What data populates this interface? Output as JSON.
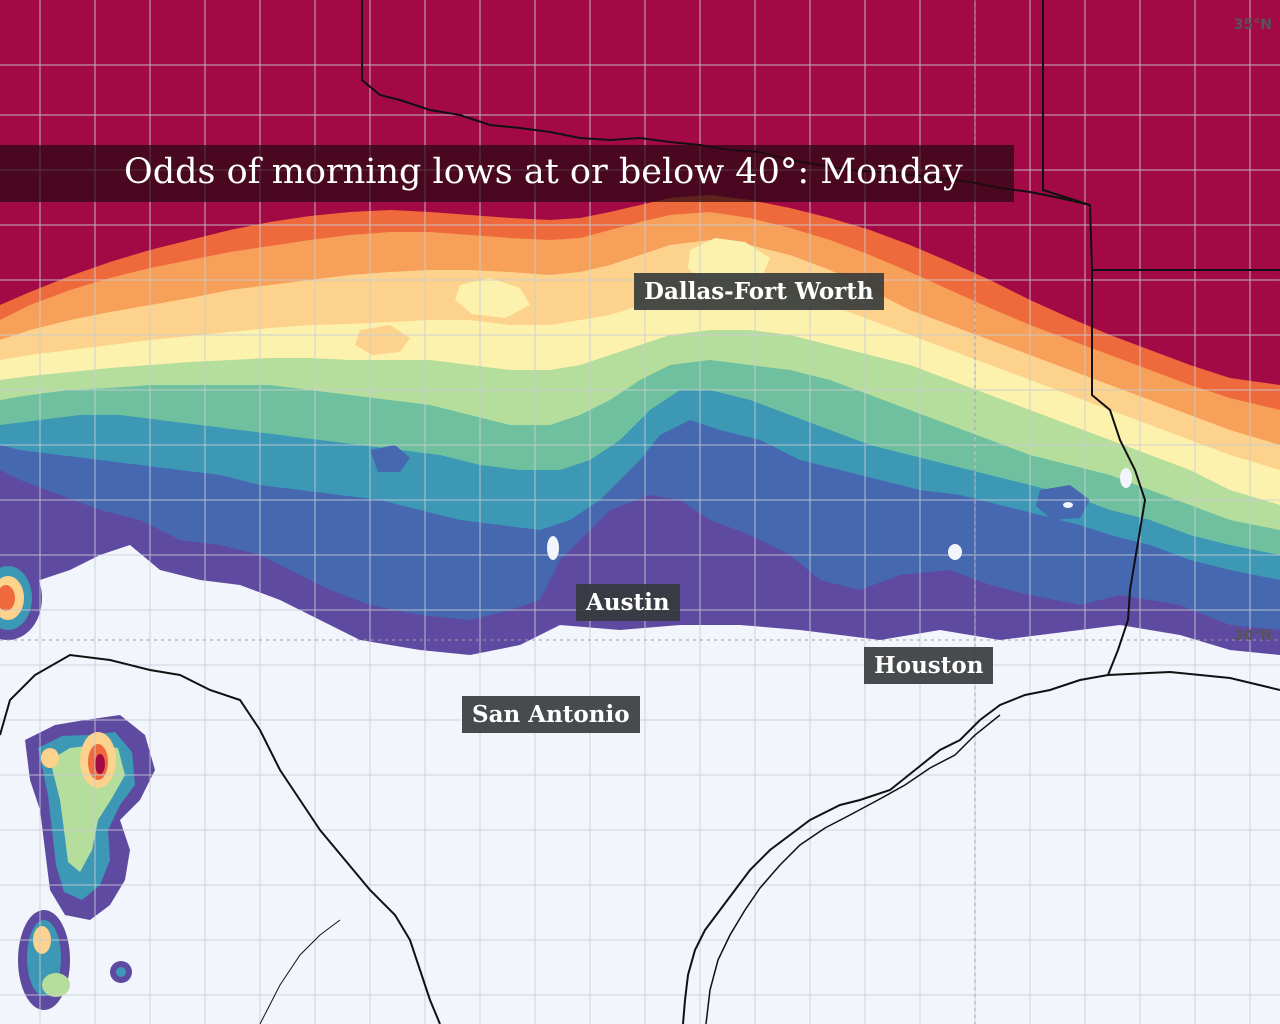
{
  "title": "Odds of morning lows at or below 40°: Monday",
  "cities": {
    "dfw": "Dallas-Fort Worth",
    "austin": "Austin",
    "houston": "Houston",
    "san_antonio": "San Antonio"
  },
  "latitude_labels": {
    "lat35": "35°N",
    "lat30": "30°N"
  },
  "colors": {
    "background": "#f2f5fb",
    "high": "#a30a45",
    "orange_red": "#ee6a3c",
    "orange": "#f7a05a",
    "light_orange": "#fdd28c",
    "pale_yellow": "#fdf1ae",
    "light_green": "#b5de9c",
    "green": "#6fc09f",
    "teal": "#3d98b6",
    "blue": "#4568b0",
    "purple": "#5e4aa0",
    "boundary": "#c9cdd6",
    "coast": "#111111"
  }
}
